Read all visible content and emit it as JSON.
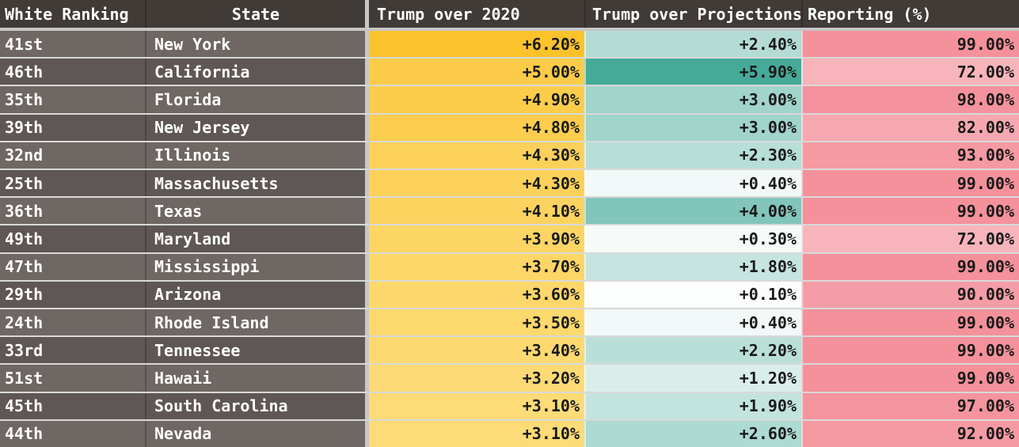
{
  "chart_data": {
    "type": "table",
    "columns": [
      "White Ranking",
      "State",
      "Trump over 2020",
      "Trump over Projections",
      "Reporting (%)"
    ],
    "rows": [
      {
        "white_ranking": "41st",
        "state": "New York",
        "trump_over_2020_pct": 6.2,
        "trump_over_projections_pct": 2.4,
        "reporting_pct": 99.0
      },
      {
        "white_ranking": "46th",
        "state": "California",
        "trump_over_2020_pct": 5.0,
        "trump_over_projections_pct": 5.9,
        "reporting_pct": 72.0
      },
      {
        "white_ranking": "35th",
        "state": "Florida",
        "trump_over_2020_pct": 4.9,
        "trump_over_projections_pct": 3.0,
        "reporting_pct": 98.0
      },
      {
        "white_ranking": "39th",
        "state": "New Jersey",
        "trump_over_2020_pct": 4.8,
        "trump_over_projections_pct": 3.0,
        "reporting_pct": 82.0
      },
      {
        "white_ranking": "32nd",
        "state": "Illinois",
        "trump_over_2020_pct": 4.3,
        "trump_over_projections_pct": 2.3,
        "reporting_pct": 93.0
      },
      {
        "white_ranking": "25th",
        "state": "Massachusetts",
        "trump_over_2020_pct": 4.3,
        "trump_over_projections_pct": 0.4,
        "reporting_pct": 99.0
      },
      {
        "white_ranking": "36th",
        "state": "Texas",
        "trump_over_2020_pct": 4.1,
        "trump_over_projections_pct": 4.0,
        "reporting_pct": 99.0
      },
      {
        "white_ranking": "49th",
        "state": "Maryland",
        "trump_over_2020_pct": 3.9,
        "trump_over_projections_pct": 0.3,
        "reporting_pct": 72.0
      },
      {
        "white_ranking": "47th",
        "state": "Mississippi",
        "trump_over_2020_pct": 3.7,
        "trump_over_projections_pct": 1.8,
        "reporting_pct": 99.0
      },
      {
        "white_ranking": "29th",
        "state": "Arizona",
        "trump_over_2020_pct": 3.6,
        "trump_over_projections_pct": 0.1,
        "reporting_pct": 90.0
      },
      {
        "white_ranking": "24th",
        "state": "Rhode Island",
        "trump_over_2020_pct": 3.5,
        "trump_over_projections_pct": 0.4,
        "reporting_pct": 99.0
      },
      {
        "white_ranking": "33rd",
        "state": "Tennessee",
        "trump_over_2020_pct": 3.4,
        "trump_over_projections_pct": 2.2,
        "reporting_pct": 99.0
      },
      {
        "white_ranking": "51st",
        "state": "Hawaii",
        "trump_over_2020_pct": 3.2,
        "trump_over_projections_pct": 1.2,
        "reporting_pct": 99.0
      },
      {
        "white_ranking": "45th",
        "state": "South Carolina",
        "trump_over_2020_pct": 3.1,
        "trump_over_projections_pct": 1.9,
        "reporting_pct": 97.0
      },
      {
        "white_ranking": "44th",
        "state": "Nevada",
        "trump_over_2020_pct": 3.1,
        "trump_over_projections_pct": 2.6,
        "reporting_pct": 92.0
      }
    ],
    "layout_hints": {
      "heatmap_columns": [
        "Trump over 2020",
        "Trump over Projections",
        "Reporting (%)"
      ],
      "grid": "on",
      "legend": "none"
    }
  },
  "colors": {
    "header-bg": "#413B38",
    "row-odd": "#6F6764",
    "row-even": "#5E5755",
    "header-text": "#FFFFFF",
    "cell-text": "#1A1A1A",
    "divider-light": "#C7C7C7"
  },
  "table": {
    "headers": {
      "rank": "White Ranking",
      "state": "State",
      "t2020": "Trump over 2020",
      "proj": "Trump over Projections",
      "rep": "Reporting (%)"
    },
    "rows": [
      {
        "rank": "41st",
        "state": "New York",
        "t2020": "+6.20%",
        "t2020_color": "#FBC22C",
        "proj": "+2.40%",
        "proj_color": "#B4DCD5",
        "rep": "99.00%",
        "rep_color": "#F4919B"
      },
      {
        "rank": "46th",
        "state": "California",
        "t2020": "+5.00%",
        "t2020_color": "#FCCC49",
        "proj": "+5.90%",
        "proj_color": "#46AA99",
        "rep": "72.00%",
        "rep_color": "#F8B4BB"
      },
      {
        "rank": "35th",
        "state": "Florida",
        "t2020": "+4.90%",
        "t2020_color": "#FCCD4B",
        "proj": "+3.00%",
        "proj_color": "#A1D4CB",
        "rep": "98.00%",
        "rep_color": "#F4929D"
      },
      {
        "rank": "39th",
        "state": "New Jersey",
        "t2020": "+4.80%",
        "t2020_color": "#FCCD4E",
        "proj": "+3.00%",
        "proj_color": "#A1D4CB",
        "rep": "82.00%",
        "rep_color": "#F7A7AF"
      },
      {
        "rank": "32nd",
        "state": "Illinois",
        "t2020": "+4.30%",
        "t2020_color": "#FCD15A",
        "proj": "+2.30%",
        "proj_color": "#B7DED7",
        "rep": "93.00%",
        "rep_color": "#F599A2"
      },
      {
        "rank": "25th",
        "state": "Massachusetts",
        "t2020": "+4.30%",
        "t2020_color": "#FCD15A",
        "proj": "+0.40%",
        "proj_color": "#F2F9F8",
        "rep": "99.00%",
        "rep_color": "#F4919B"
      },
      {
        "rank": "36th",
        "state": "Texas",
        "t2020": "+4.10%",
        "t2020_color": "#FCD35F",
        "proj": "+4.00%",
        "proj_color": "#82C5BA",
        "rep": "99.00%",
        "rep_color": "#F4919B"
      },
      {
        "rank": "49th",
        "state": "Maryland",
        "t2020": "+3.90%",
        "t2020_color": "#FCD564",
        "proj": "+0.30%",
        "proj_color": "#F6FBFA",
        "rep": "72.00%",
        "rep_color": "#F8B4BB"
      },
      {
        "rank": "47th",
        "state": "Mississippi",
        "t2020": "+3.70%",
        "t2020_color": "#FDD668",
        "proj": "+1.80%",
        "proj_color": "#C7E5E0",
        "rep": "99.00%",
        "rep_color": "#F4919B"
      },
      {
        "rank": "29th",
        "state": "Arizona",
        "t2020": "+3.60%",
        "t2020_color": "#FDD76B",
        "proj": "+0.10%",
        "proj_color": "#FCFEFD",
        "rep": "90.00%",
        "rep_color": "#F59DA6"
      },
      {
        "rank": "24th",
        "state": "Rhode Island",
        "t2020": "+3.50%",
        "t2020_color": "#FDD86D",
        "proj": "+0.40%",
        "proj_color": "#F2F9F8",
        "rep": "99.00%",
        "rep_color": "#F4919B"
      },
      {
        "rank": "33rd",
        "state": "Tennessee",
        "t2020": "+3.40%",
        "t2020_color": "#FDD970",
        "proj": "+2.20%",
        "proj_color": "#BADFD9",
        "rep": "99.00%",
        "rep_color": "#F4919B"
      },
      {
        "rank": "51st",
        "state": "Hawaii",
        "t2020": "+3.20%",
        "t2020_color": "#FDDA75",
        "proj": "+1.20%",
        "proj_color": "#D9EEEA",
        "rep": "99.00%",
        "rep_color": "#F4919B"
      },
      {
        "rank": "45th",
        "state": "South Carolina",
        "t2020": "+3.10%",
        "t2020_color": "#FDDB77",
        "proj": "+1.90%",
        "proj_color": "#C3E4DE",
        "rep": "97.00%",
        "rep_color": "#F4949E"
      },
      {
        "rank": "44th",
        "state": "Nevada",
        "t2020": "+3.10%",
        "t2020_color": "#FDDB77",
        "proj": "+2.60%",
        "proj_color": "#ADDAD2",
        "rep": "92.00%",
        "rep_color": "#F59AA3"
      }
    ]
  }
}
